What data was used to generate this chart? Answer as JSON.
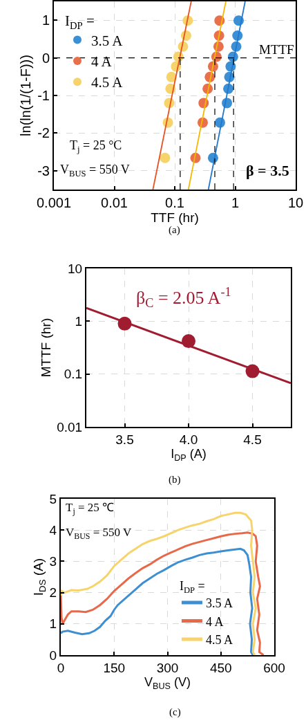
{
  "chart_data": [
    {
      "type": "scatter",
      "xlabel": "TTF (hr)",
      "ylabel": "ln(ln(1/(1-F)))",
      "log": "x",
      "xlim": [
        0.001,
        10
      ],
      "ylim": [
        -3.5,
        1.5
      ],
      "xticks": [
        0.001,
        0.01,
        0.1,
        1,
        10
      ],
      "yticks": [
        -3,
        -2,
        -1,
        0,
        1
      ],
      "grid": true,
      "marker": "circle",
      "legend": "top left",
      "legend_title": "I$_{DP}$ =",
      "series": [
        {
          "name": "3.5 A",
          "color": "#3b8fd4",
          "x": [
            0.43,
            0.56,
            0.73,
            0.77,
            0.8,
            0.84,
            0.92,
            1.04,
            1.09,
            1.14
          ],
          "values": [
            -2.66,
            -1.72,
            -1.2,
            -0.82,
            -0.51,
            -0.23,
            0.03,
            0.3,
            0.59,
            0.99
          ]
        },
        {
          "name": "4 A",
          "color": "#e8704a",
          "x": [
            0.22,
            0.29,
            0.3,
            0.35,
            0.38,
            0.43,
            0.49,
            0.53,
            0.54,
            0.55
          ],
          "values": [
            -2.66,
            -1.72,
            -1.2,
            -0.82,
            -0.51,
            -0.23,
            0.03,
            0.3,
            0.59,
            0.99
          ]
        },
        {
          "name": "4.5 A",
          "color": "#f7d36b",
          "x": [
            0.069,
            0.077,
            0.081,
            0.085,
            0.088,
            0.105,
            0.115,
            0.137,
            0.154,
            0.164
          ],
          "values": [
            -2.66,
            -1.72,
            -1.2,
            -0.82,
            -0.51,
            -0.23,
            0.03,
            0.3,
            0.59,
            0.99
          ]
        },
        {
          "type": "line",
          "marker": "none",
          "color": "#1f77d0",
          "x": [
            0.36,
            1.46
          ],
          "values": [
            -3.5,
            1.5
          ]
        },
        {
          "type": "line",
          "marker": "none",
          "color": "#f5b800",
          "x": [
            0.168,
            0.7
          ],
          "values": [
            -3.5,
            1.5
          ]
        },
        {
          "type": "line",
          "marker": "none",
          "color": "#e8501e",
          "x": [
            0.0435,
            0.187
          ],
          "values": [
            -3.5,
            1.5
          ]
        },
        {
          "type": "line",
          "marker": "none",
          "color": "#000000",
          "line_style": "dashed",
          "x": [
            0.123,
            0.123
          ],
          "values": [
            -3.5,
            0
          ]
        },
        {
          "type": "line",
          "marker": "none",
          "color": "#000000",
          "line_style": "dashed",
          "x": [
            0.46,
            0.46
          ],
          "values": [
            -3.5,
            0
          ]
        },
        {
          "type": "line",
          "marker": "none",
          "color": "#000000",
          "line_style": "dashed",
          "x": [
            0.94,
            0.94
          ],
          "values": [
            -3.5,
            0
          ]
        }
      ],
      "ref_lines": [
        {
          "axis": "y",
          "value": 0,
          "label": "MTTF",
          "color": "#000000",
          "line_style": "dashed"
        }
      ],
      "annotations": [
        "T$_{j}$ = 25 °C",
        "V$_{BUS}$ = 550 V",
        "β = 3.5",
        "(a)"
      ]
    },
    {
      "type": "scatter",
      "xlabel": "I$_{DP}$ (A)",
      "ylabel": "MTTF (hr)",
      "log": "y",
      "xlim": [
        3.2,
        4.8
      ],
      "ylim": [
        0.01,
        10
      ],
      "xticks": [
        3.5,
        {
          "value": 4,
          "label": "4.0"
        },
        4.5
      ],
      "yticks": [
        0.01,
        0.1,
        1,
        10
      ],
      "grid": true,
      "marker": "circle",
      "x": [
        3.5,
        4,
        4.5
      ],
      "series": [
        {
          "color": "#a01c30",
          "values": [
            0.9,
            0.42,
            0.113
          ]
        },
        {
          "type": "line",
          "marker": "none",
          "color": "#a01c30",
          "x": [
            3.2,
            4.8
          ],
          "values": [
            1.78,
            0.067
          ]
        }
      ],
      "annotations": [
        "β$_{C}$ = 2.05 A$^{-1}$",
        "(b)"
      ]
    },
    {
      "type": "line",
      "xlabel": "V$_{BUS}$ (V)",
      "ylabel": "I$_{DS}$ (A)",
      "xlim": [
        0,
        600
      ],
      "ylim": [
        0,
        5
      ],
      "xticks": [
        0,
        150,
        300,
        450,
        600
      ],
      "yticks": [
        0,
        1,
        2,
        3,
        4,
        5
      ],
      "grid": true,
      "legend": "bottom right",
      "legend_title": "I$_{DP}$ =",
      "series": [
        {
          "name": "3.5 A",
          "color": "#3d8fd1",
          "x": [
            0,
            5,
            20,
            40,
            60,
            80,
            95,
            110,
            125,
            140,
            150,
            160,
            175,
            190,
            210,
            230,
            250,
            270,
            290,
            310,
            330,
            350,
            370,
            390,
            410,
            430,
            450,
            470,
            490,
            505,
            515,
            525,
            530,
            535,
            533,
            538,
            532,
            537,
            535,
            540
          ],
          "values": [
            0.7,
            0.75,
            0.78,
            0.72,
            0.67,
            0.7,
            0.78,
            0.9,
            1.1,
            1.25,
            1.45,
            1.6,
            1.75,
            1.9,
            2.1,
            2.3,
            2.45,
            2.6,
            2.72,
            2.85,
            2.97,
            3.05,
            3.12,
            3.2,
            3.25,
            3.28,
            3.32,
            3.35,
            3.38,
            3.4,
            3.35,
            3.2,
            2.9,
            2.5,
            2.0,
            1.5,
            1.0,
            0.5,
            0.1,
            0
          ]
        },
        {
          "name": "4 A",
          "color": "#e8694a",
          "x": [
            0,
            2,
            5,
            10,
            20,
            30,
            50,
            70,
            90,
            110,
            130,
            150,
            170,
            190,
            210,
            230,
            250,
            270,
            290,
            310,
            330,
            350,
            370,
            390,
            410,
            430,
            450,
            470,
            490,
            510,
            525,
            540,
            548,
            552,
            548,
            555,
            560,
            552,
            558,
            552,
            560,
            558,
            570
          ],
          "values": [
            2.0,
            1.2,
            1.0,
            1.1,
            1.3,
            1.4,
            1.4,
            1.38,
            1.45,
            1.6,
            1.8,
            2.05,
            2.25,
            2.45,
            2.62,
            2.78,
            2.9,
            3.05,
            3.18,
            3.28,
            3.38,
            3.48,
            3.56,
            3.62,
            3.68,
            3.74,
            3.8,
            3.85,
            3.88,
            3.9,
            3.92,
            3.88,
            3.8,
            3.5,
            3.0,
            2.5,
            2.2,
            1.8,
            1.3,
            0.8,
            0.4,
            0.1,
            0
          ]
        },
        {
          "name": "4.5 A",
          "color": "#f7d36b",
          "x": [
            0,
            2,
            10,
            30,
            50,
            75,
            90,
            110,
            130,
            150,
            170,
            190,
            210,
            230,
            250,
            270,
            290,
            310,
            330,
            350,
            370,
            390,
            410,
            430,
            450,
            470,
            490,
            505,
            520,
            535,
            538,
            535,
            540,
            545,
            540,
            548,
            540,
            545,
            540,
            545
          ],
          "values": [
            1.9,
            2.05,
            2.0,
            2.08,
            2.07,
            2.12,
            2.2,
            2.35,
            2.55,
            2.85,
            3.05,
            3.25,
            3.4,
            3.55,
            3.65,
            3.72,
            3.8,
            3.9,
            4.0,
            4.08,
            4.15,
            4.2,
            4.28,
            4.35,
            4.45,
            4.5,
            4.55,
            4.55,
            4.5,
            4.3,
            4.0,
            3.5,
            3.0,
            2.5,
            2.0,
            1.5,
            1.0,
            0.5,
            0.1,
            0
          ]
        }
      ],
      "annotations": [
        "T$_{j}$ = 25 ℃",
        "V$_{BUS}$ = 550 V",
        "(c)"
      ]
    }
  ]
}
